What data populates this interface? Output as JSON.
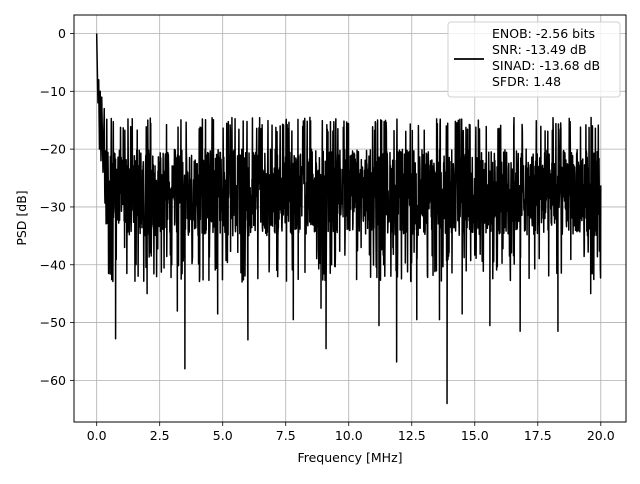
{
  "chart_data": {
    "type": "line",
    "title": "",
    "xlabel": "Frequency [MHz]",
    "ylabel": "PSD [dB]",
    "xlim": [
      -0.9,
      21.0
    ],
    "ylim": [
      -67.2,
      3.2
    ],
    "grid": true,
    "legend_position": "top-right",
    "x_ticks": [
      0.0,
      2.5,
      5.0,
      7.5,
      10.0,
      12.5,
      15.0,
      17.5,
      20.0
    ],
    "x_tick_labels": [
      "0.0",
      "2.5",
      "5.0",
      "7.5",
      "10.0",
      "12.5",
      "15.0",
      "17.5",
      "20.0"
    ],
    "y_ticks": [
      0,
      -10,
      -20,
      -30,
      -40,
      -50,
      -60
    ],
    "y_tick_labels": [
      "0",
      "−10",
      "−20",
      "−30",
      "−40",
      "−50",
      "−60"
    ],
    "legend_entries": [
      "ENOB: -2.56 bits",
      "SNR: -13.49 dB",
      "SINAD: -13.68 dB",
      "SFDR: 1.48"
    ],
    "series": [
      {
        "color": "#000000",
        "spectrum": {
          "x_range": [
            0.0,
            20.0
          ],
          "peak": {
            "x": 0.0,
            "y": 0.0
          },
          "low_freq_points": [
            [
              0.02,
              -5
            ],
            [
              0.05,
              -12
            ],
            [
              0.08,
              -8
            ],
            [
              0.11,
              -20
            ],
            [
              0.14,
              -10
            ],
            [
              0.17,
              -22
            ],
            [
              0.2,
              -11
            ],
            [
              0.25,
              -24
            ],
            [
              0.3,
              -13
            ]
          ],
          "upper_envelope_db": -14.5,
          "typical_range_db": [
            -35,
            -20
          ],
          "minima": [
            {
              "x": 0.75,
              "y": -52.8
            },
            {
              "x": 2.0,
              "y": -45.0
            },
            {
              "x": 3.2,
              "y": -48.0
            },
            {
              "x": 3.5,
              "y": -58.0
            },
            {
              "x": 4.8,
              "y": -48.5
            },
            {
              "x": 6.0,
              "y": -53.0
            },
            {
              "x": 7.8,
              "y": -49.5
            },
            {
              "x": 8.9,
              "y": -47.5
            },
            {
              "x": 9.1,
              "y": -54.5
            },
            {
              "x": 11.2,
              "y": -50.5
            },
            {
              "x": 11.9,
              "y": -56.8
            },
            {
              "x": 12.7,
              "y": -49.5
            },
            {
              "x": 13.6,
              "y": -49.5
            },
            {
              "x": 13.9,
              "y": -64.0
            },
            {
              "x": 14.5,
              "y": -48.5
            },
            {
              "x": 15.6,
              "y": -50.5
            },
            {
              "x": 16.8,
              "y": -51.5
            },
            {
              "x": 18.3,
              "y": -51.5
            },
            {
              "x": 19.6,
              "y": -45.0
            }
          ]
        }
      }
    ]
  }
}
